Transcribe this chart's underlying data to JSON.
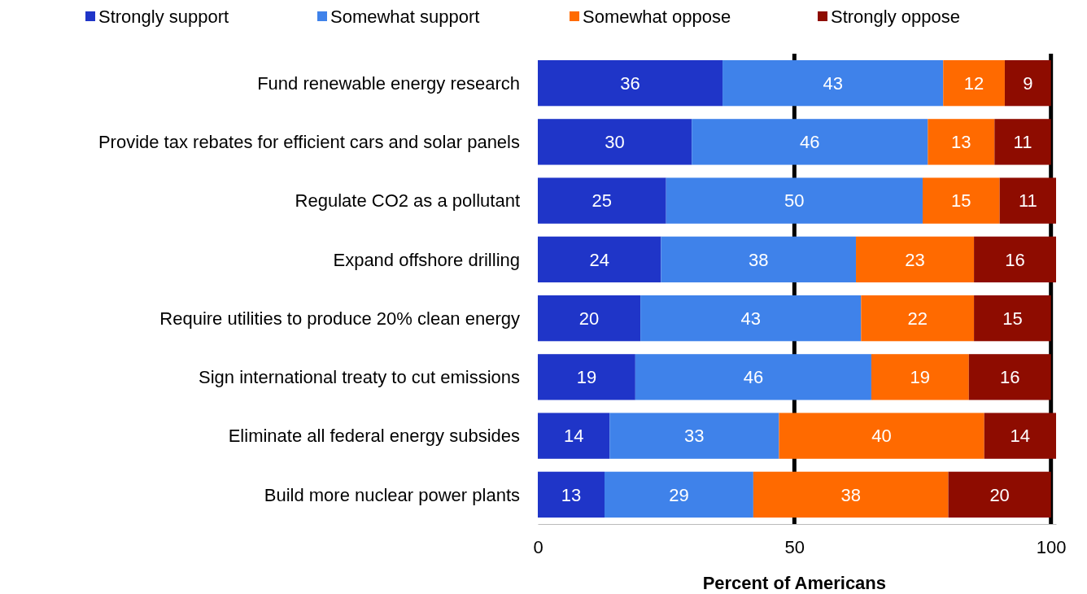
{
  "chart_data": {
    "type": "bar",
    "orientation": "horizontal",
    "stacked": true,
    "xlabel": "Percent of Americans",
    "categories": [
      "Fund renewable energy research",
      "Provide tax rebates for efficient cars and solar panels",
      "Regulate CO2 as a pollutant",
      "Expand offshore drilling",
      "Require utilities to produce 20% clean energy",
      "Sign international treaty to cut emissions",
      "Eliminate all federal energy subsides",
      "Build more nuclear power plants"
    ],
    "series": [
      {
        "name": "Strongly support",
        "color": "#1f35c8",
        "values": [
          36,
          30,
          25,
          24,
          20,
          19,
          14,
          13
        ]
      },
      {
        "name": "Somewhat support",
        "color": "#3f82ea",
        "values": [
          43,
          46,
          50,
          38,
          43,
          46,
          33,
          29
        ]
      },
      {
        "name": "Somewhat oppose",
        "color": "#ff6a00",
        "values": [
          12,
          13,
          15,
          23,
          22,
          19,
          40,
          38
        ]
      },
      {
        "name": "Strongly oppose",
        "color": "#8e0c00",
        "values": [
          9,
          11,
          11,
          16,
          15,
          16,
          14,
          20
        ]
      }
    ],
    "xlim": [
      0,
      101
    ],
    "xticks": [
      0,
      50,
      100
    ],
    "grid": "x",
    "legend": "top",
    "data_labels": true
  }
}
